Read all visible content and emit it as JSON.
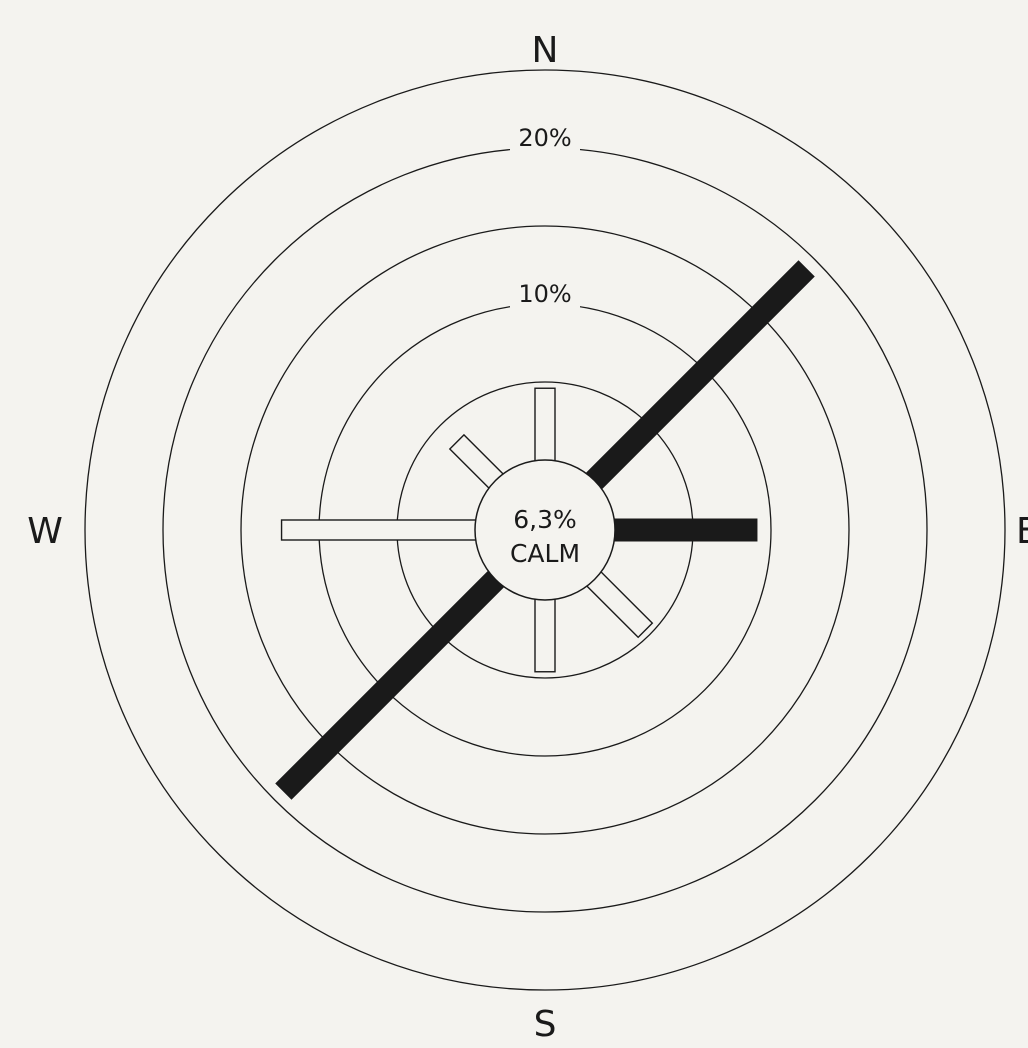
{
  "chart_data": {
    "type": "wind-rose",
    "directions": [
      "N",
      "NE",
      "E",
      "SE",
      "S",
      "SW",
      "W",
      "NW"
    ],
    "compass_labels": {
      "N": "N",
      "E": "E",
      "S": "S",
      "W": "W"
    },
    "values_percent": [
      4.6,
      19.2,
      9.1,
      4.6,
      4.6,
      19.2,
      12.4,
      3.5
    ],
    "highlighted": [
      false,
      true,
      true,
      false,
      false,
      true,
      false,
      false
    ],
    "ring_labels": {
      "ring_10": "10%",
      "ring_20": "20%"
    },
    "rings_percent": [
      5,
      10,
      15,
      20,
      25
    ],
    "calm": {
      "value": "6,3%",
      "label": "CALM"
    },
    "colors": {
      "highlight": "#1a1a1a",
      "outline": "#1a1a1a",
      "background": "#f4f3ef"
    }
  }
}
